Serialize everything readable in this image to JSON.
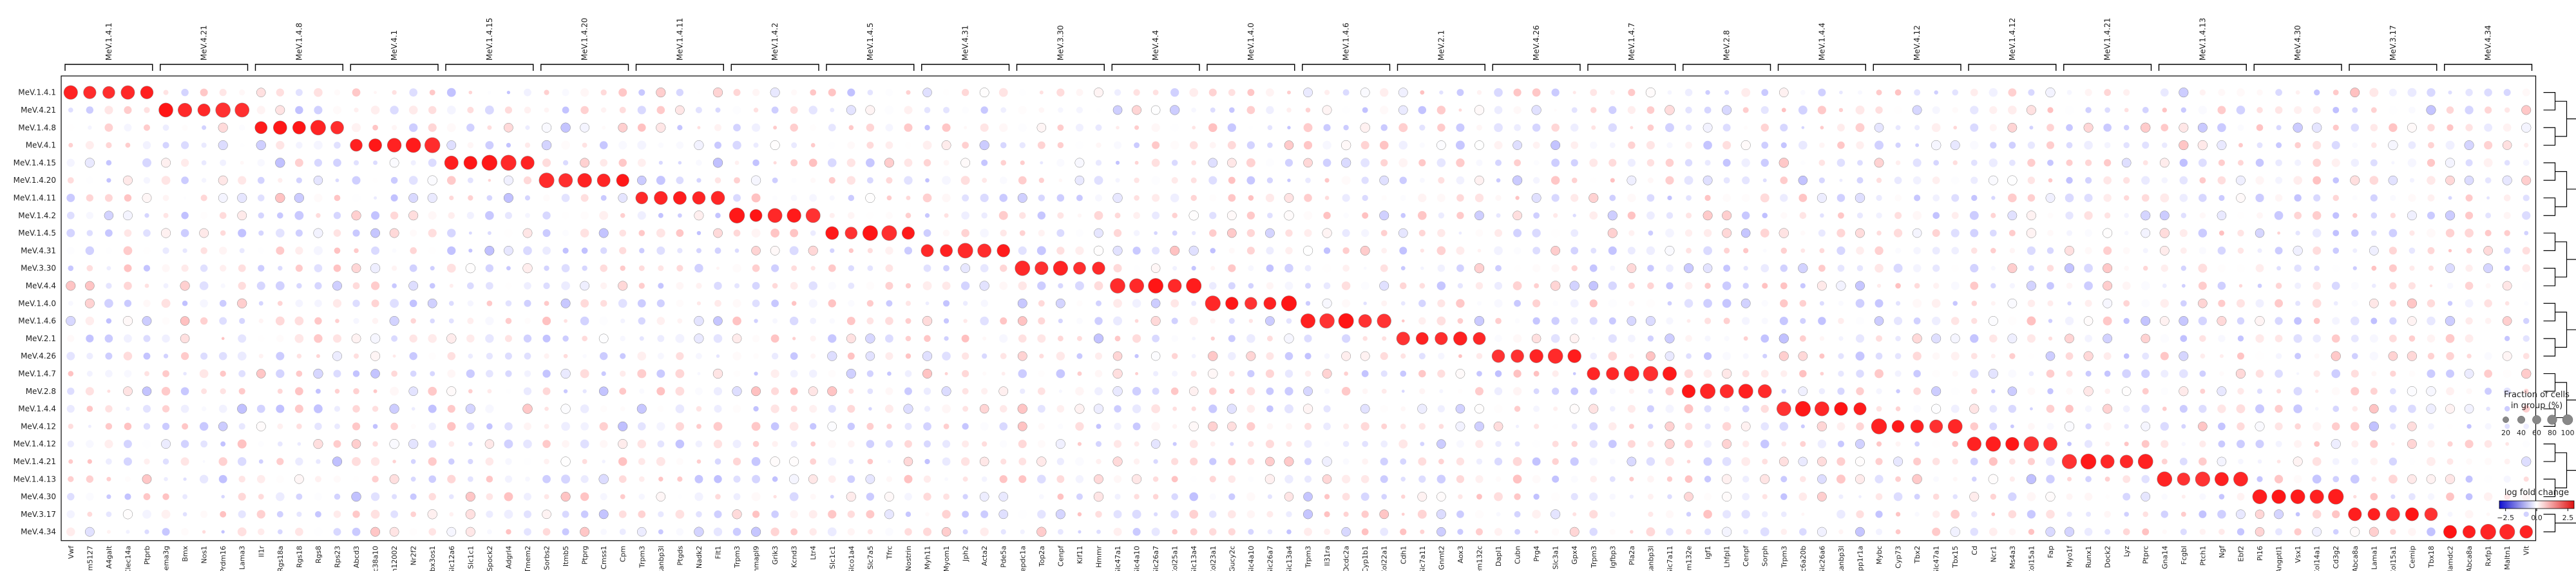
{
  "chart_data": {
    "type": "dotplot",
    "xlabel": "",
    "ylabel": "",
    "groups": [
      "MeV.1.4.1",
      "MeV.4.21",
      "MeV.1.4.8",
      "MeV.4.1",
      "MeV.1.4.15",
      "MeV.1.4.20",
      "MeV.1.4.11",
      "MeV.1.4.2",
      "MeV.1.4.5",
      "MeV.4.31",
      "MeV.3.30",
      "MeV.4.4",
      "MeV.1.4.0",
      "MeV.1.4.6",
      "MeV.2.1",
      "MeV.4.26",
      "MeV.1.4.7",
      "MeV.2.8",
      "MeV.1.4.4",
      "MeV.4.12",
      "MeV.1.4.12",
      "MeV.1.4.21",
      "MeV.1.4.13",
      "MeV.4.30",
      "MeV.3.17",
      "MeV.4.34"
    ],
    "group_genes": [
      [
        "Vwf",
        "Gm5127",
        "A4galt",
        "Clec14a",
        "Ptprb"
      ],
      [
        "Sema3g",
        "Bmx",
        "Nos1",
        "Prdm16",
        "Lama3"
      ],
      [
        "Il1r",
        "Rgs18a",
        "Rgs18",
        "Rgs8",
        "Rps23"
      ],
      [
        "Abcd3",
        "Slc38a10",
        "Gm12002",
        "Nr2f2",
        "Tbx3os1"
      ],
      [
        "Slc12a6",
        "Slc1c1",
        "Spock2",
        "Adgrl4",
        "Tmem2"
      ],
      [
        "Sorbs2",
        "Itmb5",
        "Ptprg",
        "Cmss1",
        "Cpm"
      ],
      [
        "Trpm3",
        "Ranbp3l",
        "Ptgds",
        "Nadk2",
        "Flt1"
      ],
      [
        "Trpm3",
        "Chmapl9",
        "Grik3",
        "Kcnd3",
        "Ltr4"
      ],
      [
        "Slc1c1",
        "Slco1a4",
        "Slc7a5",
        "Tfrc",
        "Nostrin"
      ],
      [
        "Myh11",
        "Myom1",
        "Jph2",
        "Acta2",
        "Pde5a"
      ],
      [
        "Depdc1a",
        "Top2a",
        "Cenpf",
        "Kif11",
        "Hmmr"
      ],
      [
        "Slc47a1",
        "Slc4a10",
        "Slc26a7",
        "Col25a1",
        "Slc13a4"
      ],
      [
        "Col23a1",
        "Gucy2c",
        "Slc4a10",
        "Slc26a7",
        "Slc13a4"
      ],
      [
        "Trpm3",
        "Il31ra",
        "Dcdc2a",
        "Cyp1b1",
        "Col22a1"
      ],
      [
        "Cdh1",
        "Slc7a11",
        "Gnmt2",
        "Aox3",
        "Tmem132c"
      ],
      [
        "Dapl1",
        "Cubn",
        "Prg4",
        "Slc3a1",
        "Gpx4"
      ],
      [
        "Trpm3",
        "Igfbp3",
        "Pla2a",
        "Ranbp3l",
        "Slc7a11"
      ],
      [
        "Tmem132e",
        "Igf1",
        "Lhfpl1",
        "Cenpf",
        "Sorph"
      ],
      [
        "Trpm3",
        "Slc6a20b",
        "Slc26a6",
        "Ranbp3l",
        "Ppp1r1a"
      ],
      [
        "Mybc",
        "Cyp73",
        "Tbx2",
        "Slc47a1",
        "Tbx15"
      ],
      [
        "Cd",
        "Ncr1",
        "Ms4a3",
        "Col15a1",
        "Fap"
      ],
      [
        "Myo1f",
        "Runx1",
        "Dock2",
        "Lyz",
        "Ptprc"
      ],
      [
        "Gna14",
        "Fcgbl",
        "Ptch1",
        "Ngf",
        "Ebf2"
      ],
      [
        "Pi16",
        "Angptl1",
        "Vsx1",
        "Col14a1",
        "Cd3g2"
      ],
      [
        "Abca8a",
        "Lama1",
        "Col15a1",
        "Cemip",
        "Tbx18"
      ],
      [
        "Mamdc2",
        "Abca8a",
        "Rxfp1",
        "Maltn1",
        "Vit"
      ]
    ],
    "value_encoding": {
      "dot_size": "fraction of cells in group (%)",
      "dot_color": "log fold change"
    },
    "size_legend": {
      "title_line1": "Fraction of cells",
      "title_line2": "in group (%)",
      "values": [
        20,
        40,
        60,
        80,
        100
      ],
      "tick_labels": [
        "20",
        "40",
        "60",
        "80",
        "100"
      ]
    },
    "color_legend": {
      "title": "log fold change",
      "min": -3,
      "max": 3,
      "ticks": [
        -2.5,
        0.0,
        2.5
      ],
      "tick_labels": [
        "−2.5",
        "0.0",
        "2.5"
      ],
      "colormap": [
        "#1010d0",
        "#ffffff",
        "#e01010"
      ]
    },
    "dendrogram": true,
    "grid": false
  }
}
